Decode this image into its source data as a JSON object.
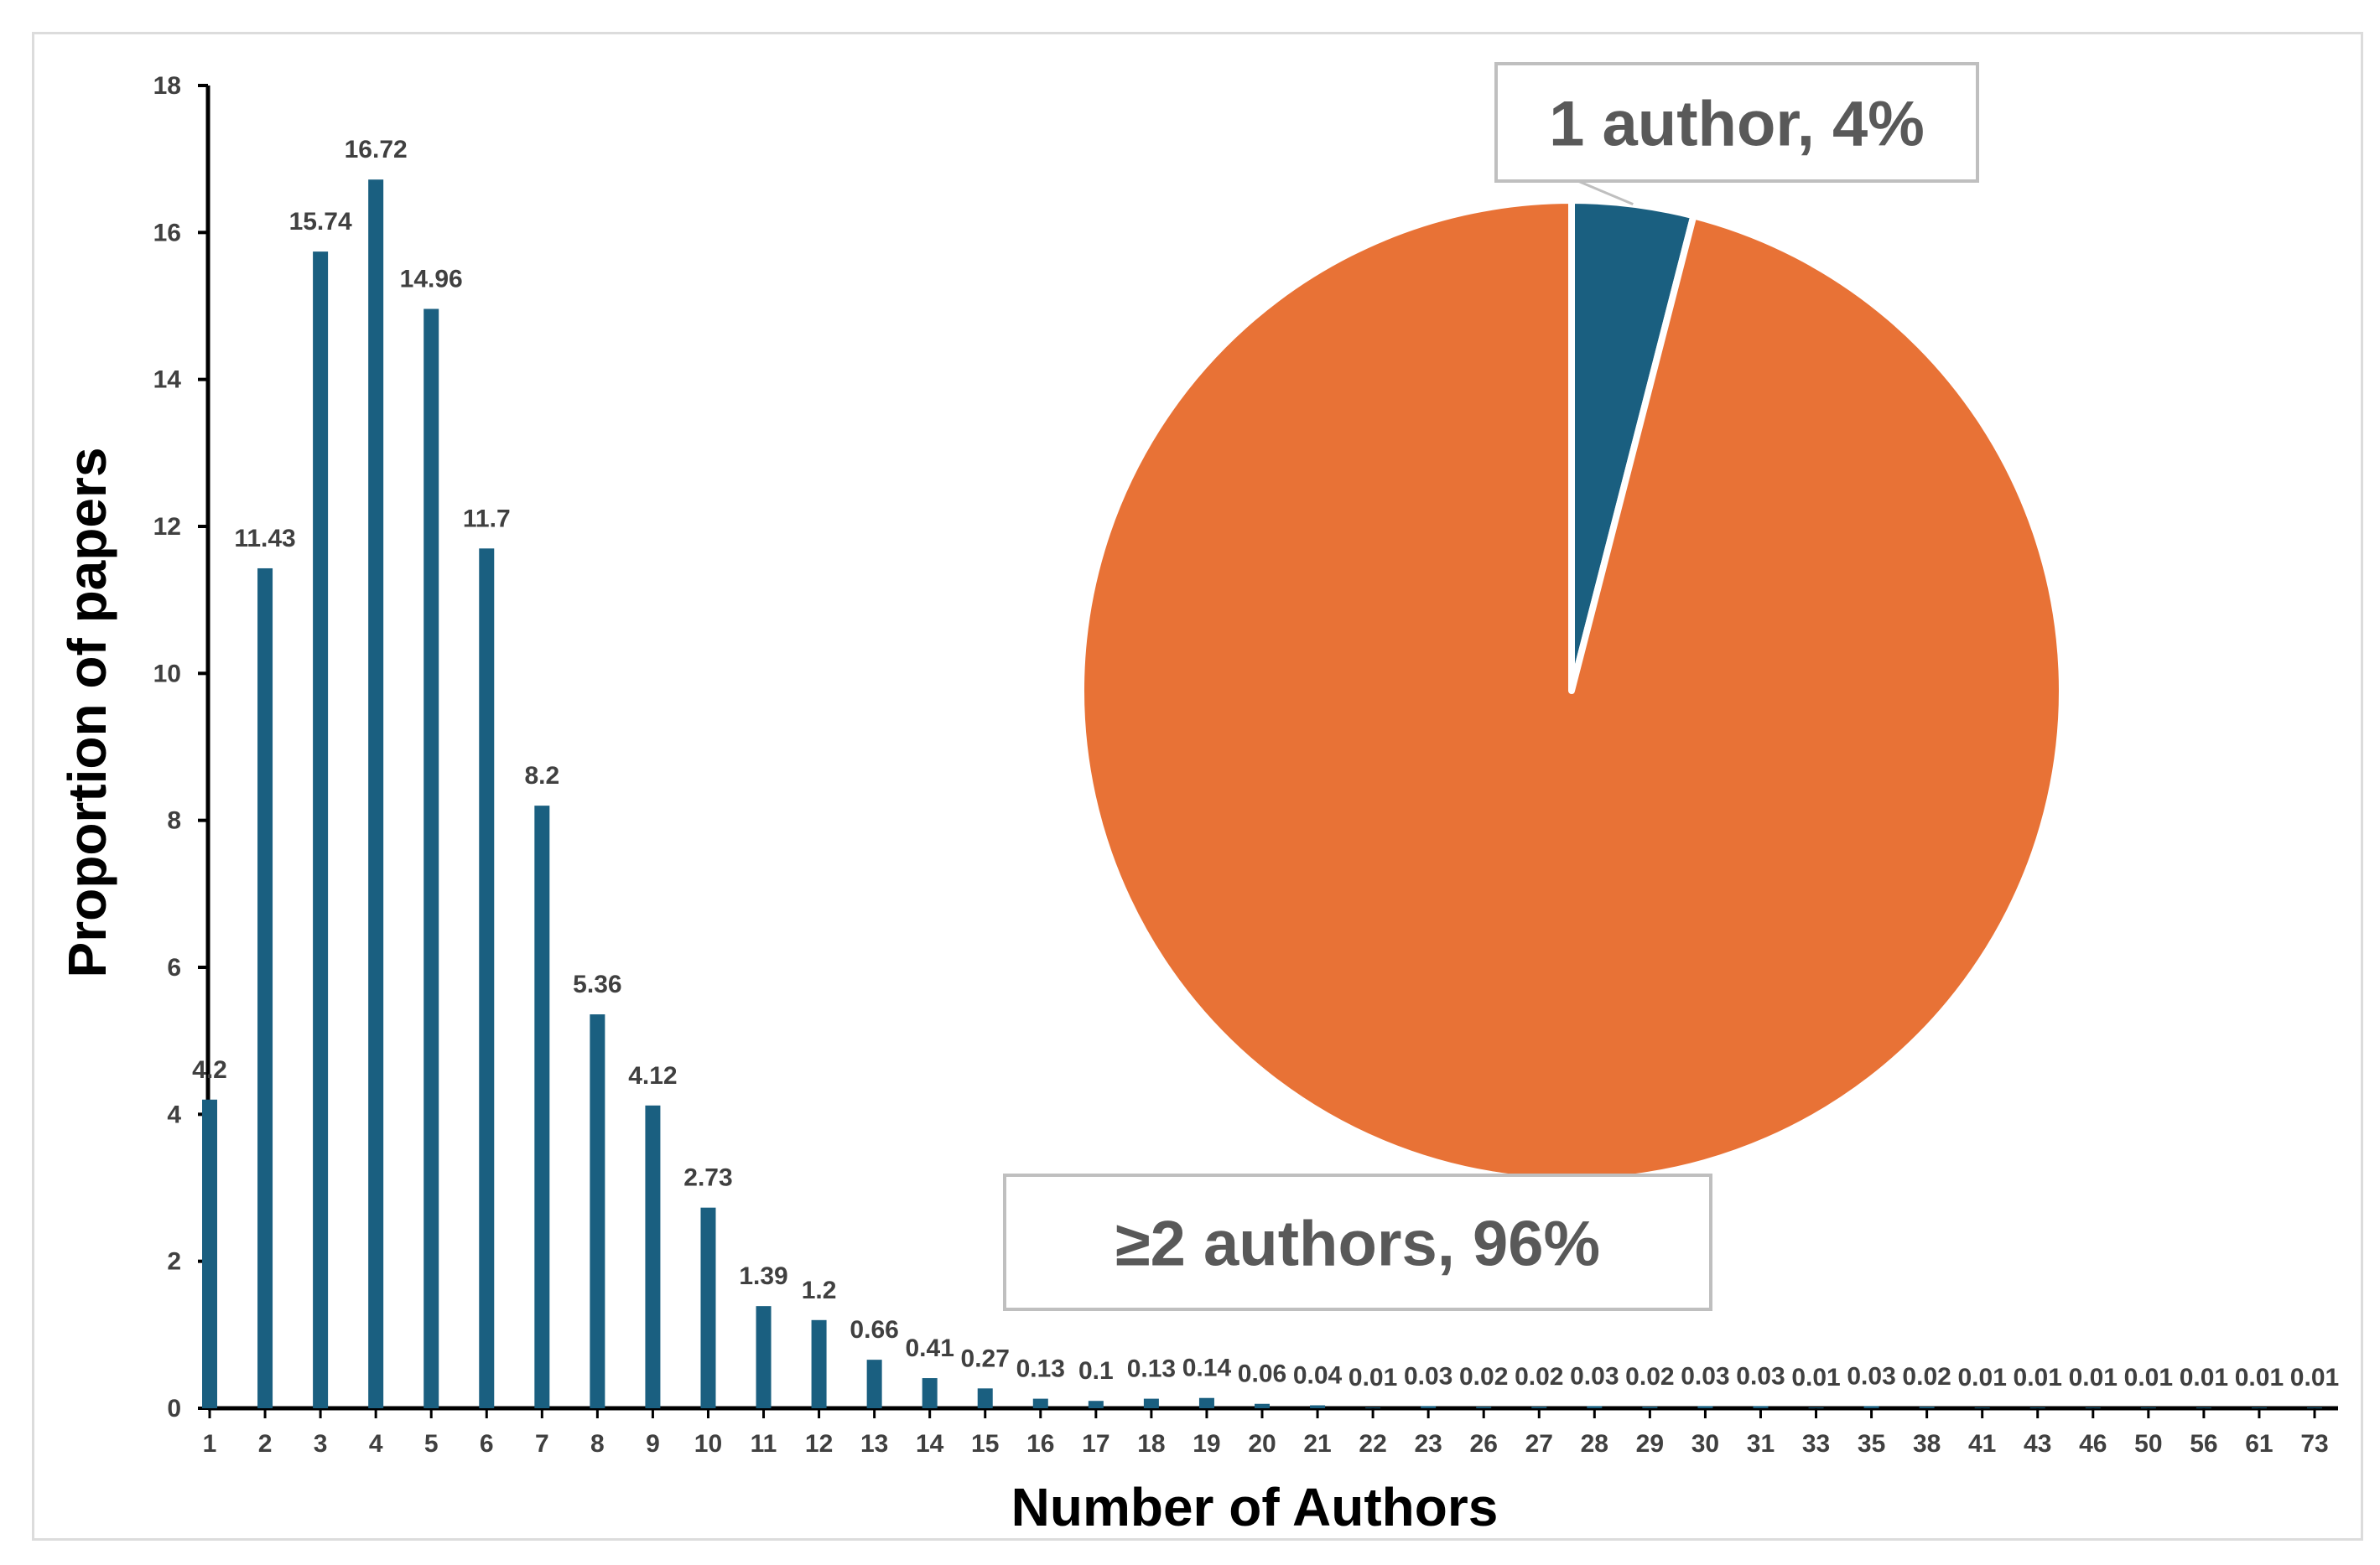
{
  "chart_data": [
    {
      "type": "bar",
      "title": "",
      "xlabel": "Number of Authors",
      "ylabel": "Proportion of papers",
      "ylim": [
        0,
        18
      ],
      "yticks": [
        "0",
        "2",
        "4",
        "6",
        "8",
        "10",
        "12",
        "14",
        "16",
        "18"
      ],
      "grid": false,
      "bar_color": "#1a5f80",
      "categories": [
        "1",
        "2",
        "3",
        "4",
        "5",
        "6",
        "7",
        "8",
        "9",
        "10",
        "11",
        "12",
        "13",
        "14",
        "15",
        "16",
        "17",
        "18",
        "19",
        "20",
        "21",
        "22",
        "23",
        "26",
        "27",
        "28",
        "29",
        "30",
        "31",
        "33",
        "35",
        "38",
        "41",
        "43",
        "46",
        "50",
        "56",
        "61",
        "73"
      ],
      "values": [
        4.2,
        11.43,
        15.74,
        16.72,
        14.96,
        11.7,
        8.2,
        5.36,
        4.12,
        2.73,
        1.39,
        1.2,
        0.66,
        0.41,
        0.27,
        0.13,
        0.1,
        0.13,
        0.14,
        0.06,
        0.04,
        0.01,
        0.03,
        0.02,
        0.02,
        0.03,
        0.02,
        0.03,
        0.03,
        0.01,
        0.03,
        0.02,
        0.01,
        0.01,
        0.01,
        0.01,
        0.01,
        0.01,
        0.01
      ],
      "data_labels": [
        "4.2",
        "11.43",
        "15.74",
        "16.72",
        "14.96",
        "11.7",
        "8.2",
        "5.36",
        "4.12",
        "2.73",
        "1.39",
        "1.2",
        "0.66",
        "0.41",
        "0.27",
        "0.13",
        "0.1",
        "0.13",
        "0.14",
        "0.06",
        "0.04",
        "0.01",
        "0.03",
        "0.02",
        "0.02",
        "0.03",
        "0.02",
        "0.03",
        "0.03",
        "0.01",
        "0.03",
        "0.02",
        "0.01",
        "0.01",
        "0.01",
        "0.01",
        "0.01",
        "0.01",
        "0.01"
      ]
    },
    {
      "type": "pie",
      "slices": [
        {
          "label": "1 author, 4%",
          "value": 4,
          "color": "#1a5f80"
        },
        {
          "label": "≥2 authors, 96%",
          "value": 96,
          "color": "#e87236"
        }
      ]
    }
  ]
}
